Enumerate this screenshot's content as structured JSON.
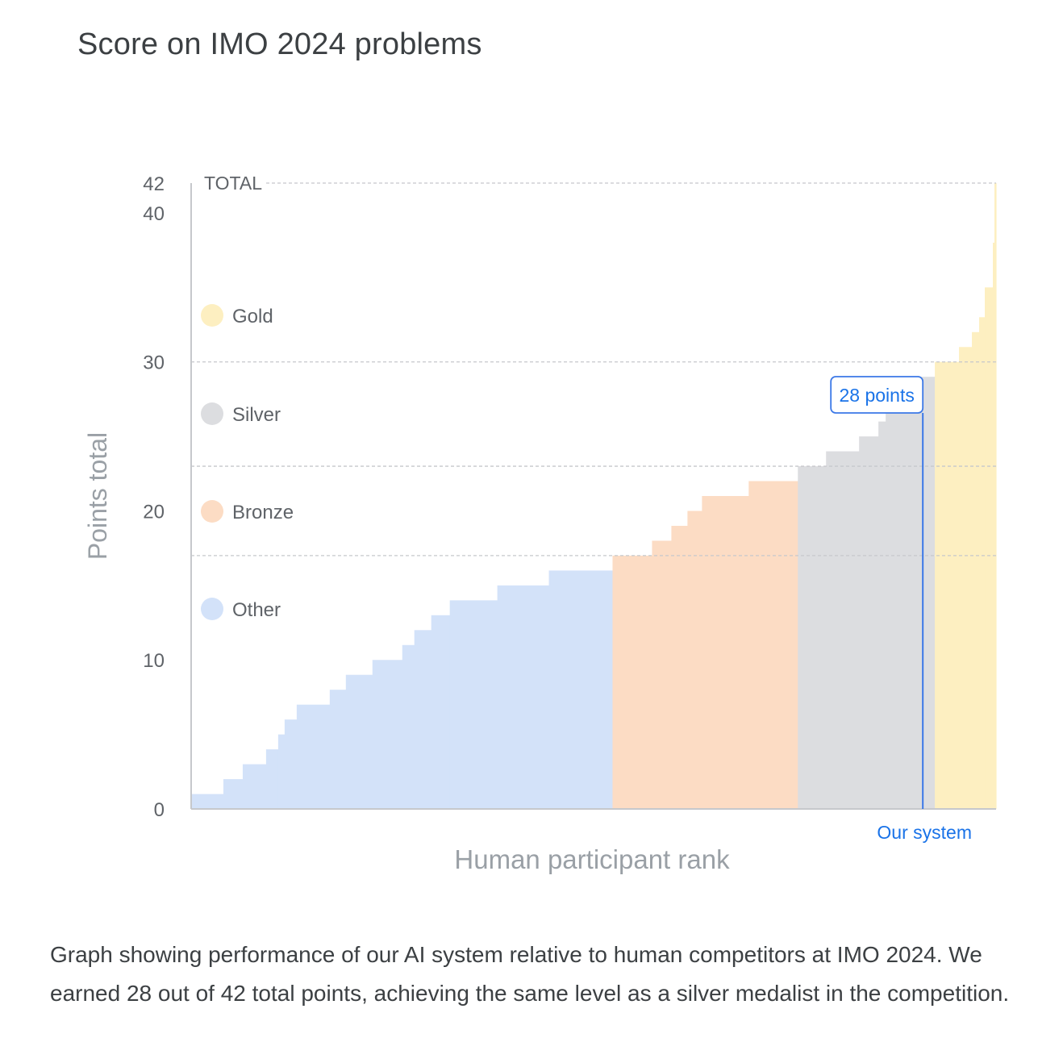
{
  "chart_data": {
    "type": "bar",
    "title": "Score on IMO 2024 problems",
    "xlabel": "Human participant rank",
    "ylabel": "Points total",
    "ylim": [
      0,
      42
    ],
    "yticks": [
      0,
      10,
      20,
      30,
      40,
      42
    ],
    "grid": "dashed at medal thresholds",
    "total_label": "TOTAL",
    "legend": [
      {
        "name": "Gold",
        "color": "#fdefc1"
      },
      {
        "name": "Silver",
        "color": "#dcdde0"
      },
      {
        "name": "Bronze",
        "color": "#fcdcc4"
      },
      {
        "name": "Other",
        "color": "#d3e2f9"
      }
    ],
    "thresholds": [
      {
        "name": "Gold",
        "value": 30
      },
      {
        "name": "Silver",
        "value": 23
      },
      {
        "name": "Bronze",
        "value": 17
      }
    ],
    "steps": [
      {
        "width": 40,
        "value": 1,
        "tier": "Other"
      },
      {
        "width": 24,
        "value": 2,
        "tier": "Other"
      },
      {
        "width": 29,
        "value": 3,
        "tier": "Other"
      },
      {
        "width": 15,
        "value": 4,
        "tier": "Other"
      },
      {
        "width": 8,
        "value": 5,
        "tier": "Other"
      },
      {
        "width": 15,
        "value": 6,
        "tier": "Other"
      },
      {
        "width": 41,
        "value": 7,
        "tier": "Other"
      },
      {
        "width": 20,
        "value": 8,
        "tier": "Other"
      },
      {
        "width": 33,
        "value": 9,
        "tier": "Other"
      },
      {
        "width": 37,
        "value": 10,
        "tier": "Other"
      },
      {
        "width": 15,
        "value": 11,
        "tier": "Other"
      },
      {
        "width": 21,
        "value": 12,
        "tier": "Other"
      },
      {
        "width": 23,
        "value": 13,
        "tier": "Other"
      },
      {
        "width": 59,
        "value": 14,
        "tier": "Other"
      },
      {
        "width": 64,
        "value": 15,
        "tier": "Other"
      },
      {
        "width": 79,
        "value": 16,
        "tier": "Other"
      },
      {
        "width": 49,
        "value": 17,
        "tier": "Bronze"
      },
      {
        "width": 24,
        "value": 18,
        "tier": "Bronze"
      },
      {
        "width": 20,
        "value": 19,
        "tier": "Bronze"
      },
      {
        "width": 18,
        "value": 20,
        "tier": "Bronze"
      },
      {
        "width": 58,
        "value": 21,
        "tier": "Bronze"
      },
      {
        "width": 61,
        "value": 22,
        "tier": "Bronze"
      },
      {
        "width": 35,
        "value": 23,
        "tier": "Silver"
      },
      {
        "width": 41,
        "value": 24,
        "tier": "Silver"
      },
      {
        "width": 24,
        "value": 25,
        "tier": "Silver"
      },
      {
        "width": 9,
        "value": 26,
        "tier": "Silver"
      },
      {
        "width": 20,
        "value": 27,
        "tier": "Silver"
      },
      {
        "width": 41,
        "value": 29,
        "tier": "Silver"
      },
      {
        "width": 30,
        "value": 30,
        "tier": "Gold"
      },
      {
        "width": 16,
        "value": 31,
        "tier": "Gold"
      },
      {
        "width": 9,
        "value": 32,
        "tier": "Gold"
      },
      {
        "width": 7,
        "value": 33,
        "tier": "Gold"
      },
      {
        "width": 10,
        "value": 35,
        "tier": "Gold"
      },
      {
        "width": 2,
        "value": 38,
        "tier": "Gold"
      },
      {
        "width": 2,
        "value": 42,
        "tier": "Gold"
      }
    ],
    "our_system": {
      "label": "Our system",
      "value": 28,
      "callout": "28 points",
      "rank_fraction": 0.909
    }
  },
  "caption": "Graph showing performance of our AI system relative to human competitors at IMO 2024. We earned 28 out of 42 total points, achieving the same level as a silver medalist in the competition."
}
